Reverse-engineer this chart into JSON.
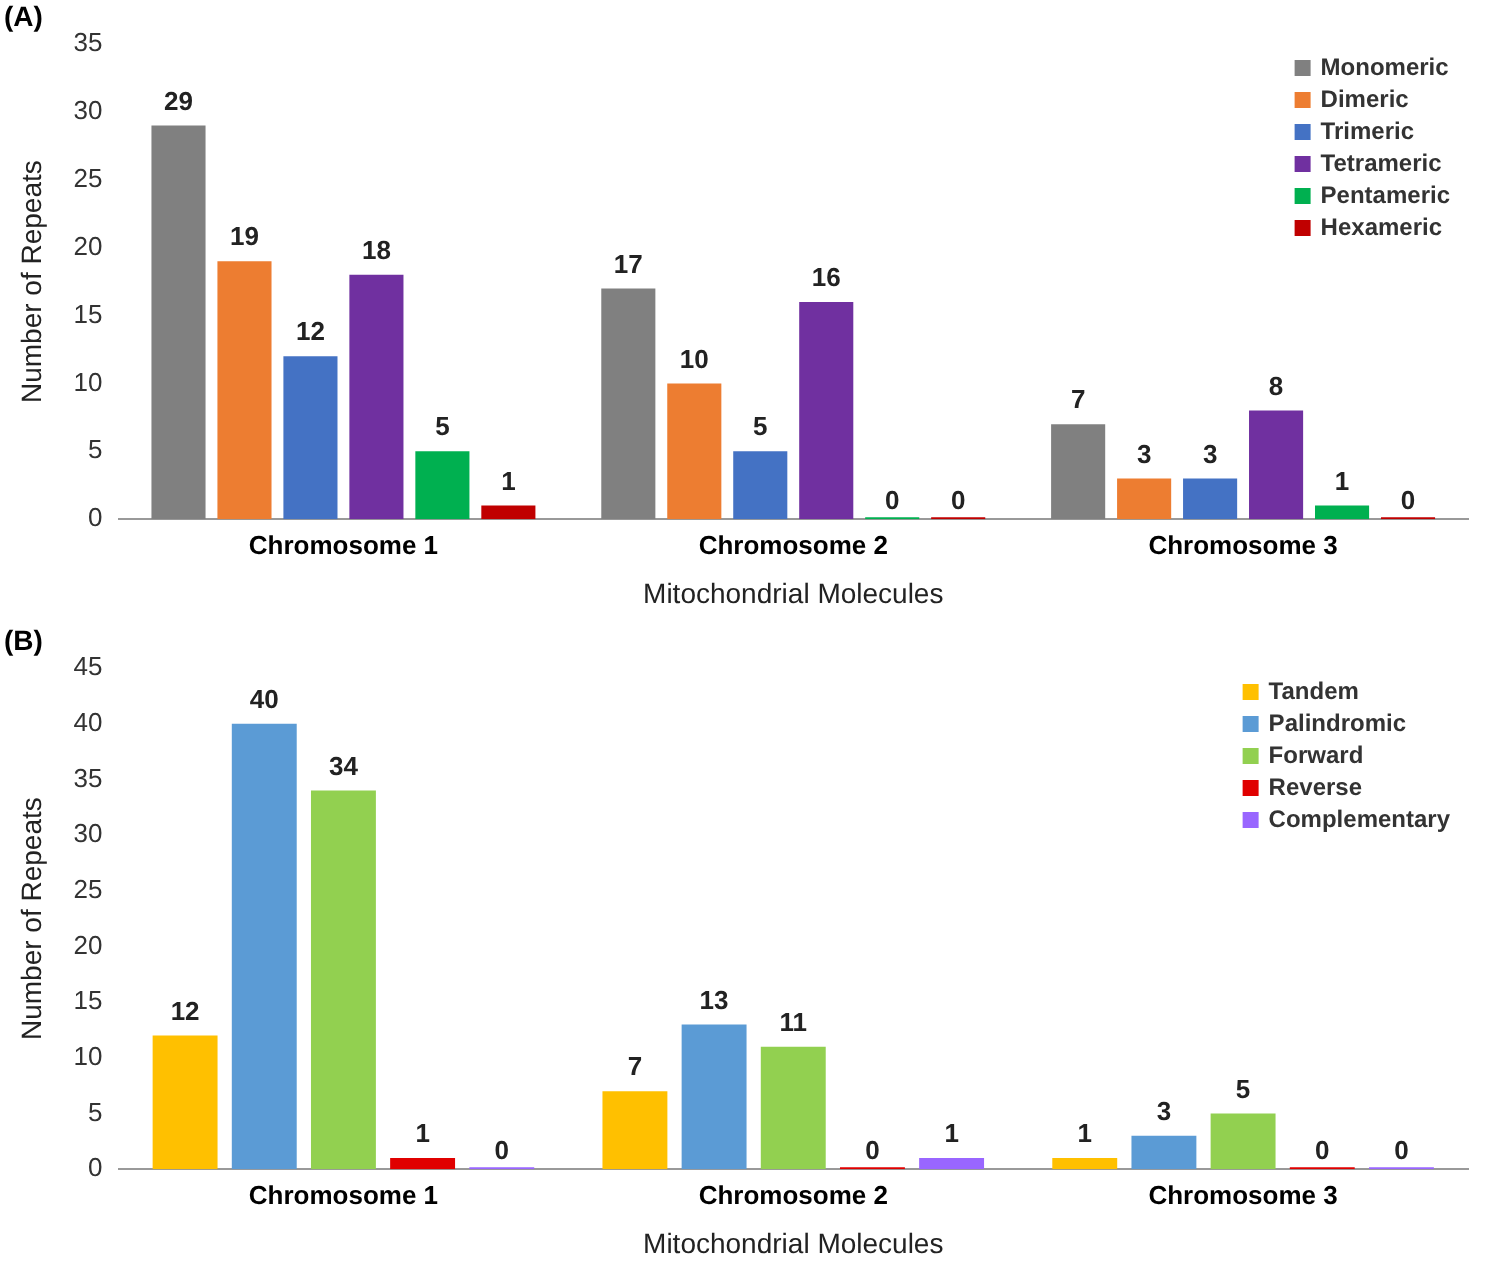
{
  "chart_data": [
    {
      "type": "bar",
      "title": "(A)",
      "xlabel": "Mitochondrial Molecules",
      "ylabel": "Number of Repeats",
      "categories": [
        "Chromosome 1",
        "Chromosome 2",
        "Chromosome 3"
      ],
      "ylim": [
        0,
        35
      ],
      "yticks": [
        0,
        5,
        10,
        15,
        20,
        25,
        30,
        35
      ],
      "grid": false,
      "legend": "top right",
      "data_labels": true,
      "series": [
        {
          "name": "Monomeric",
          "color": "#808080",
          "values": [
            29,
            17,
            7
          ]
        },
        {
          "name": "Dimeric",
          "color": "#ed7d31",
          "values": [
            19,
            10,
            3
          ]
        },
        {
          "name": "Trimeric",
          "color": "#4472c4",
          "values": [
            12,
            5,
            3
          ]
        },
        {
          "name": "Tetrameric",
          "color": "#7030a0",
          "values": [
            18,
            16,
            8
          ]
        },
        {
          "name": "Pentameric",
          "color": "#00b050",
          "values": [
            5,
            0,
            1
          ]
        },
        {
          "name": "Hexameric",
          "color": "#c00000",
          "values": [
            1,
            0,
            0
          ]
        }
      ]
    },
    {
      "type": "bar",
      "title": "(B)",
      "xlabel": "Mitochondrial Molecules",
      "ylabel": "Number of Repeats",
      "categories": [
        "Chromosome 1",
        "Chromosome 2",
        "Chromosome 3"
      ],
      "ylim": [
        0,
        45
      ],
      "yticks": [
        0,
        5,
        10,
        15,
        20,
        25,
        30,
        35,
        40,
        45
      ],
      "grid": false,
      "legend": "top right",
      "data_labels": true,
      "series": [
        {
          "name": "Tandem",
          "color": "#ffc000",
          "values": [
            12,
            7,
            1
          ]
        },
        {
          "name": "Palindromic",
          "color": "#5b9bd5",
          "values": [
            40,
            13,
            3
          ]
        },
        {
          "name": "Forward",
          "color": "#92d050",
          "values": [
            34,
            11,
            5
          ]
        },
        {
          "name": "Reverse",
          "color": "#e00000",
          "values": [
            1,
            0,
            0
          ]
        },
        {
          "name": "Complementary",
          "color": "#9966ff",
          "values": [
            0,
            1,
            0
          ]
        }
      ]
    }
  ]
}
